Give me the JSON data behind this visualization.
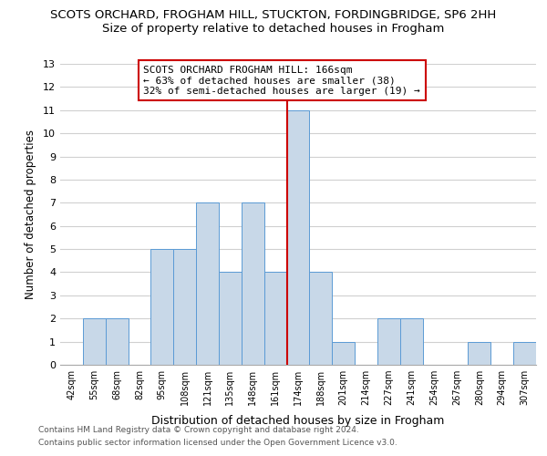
{
  "title": "SCOTS ORCHARD, FROGHAM HILL, STUCKTON, FORDINGBRIDGE, SP6 2HH",
  "subtitle": "Size of property relative to detached houses in Frogham",
  "xlabel": "Distribution of detached houses by size in Frogham",
  "ylabel": "Number of detached properties",
  "bin_labels": [
    "42sqm",
    "55sqm",
    "68sqm",
    "82sqm",
    "95sqm",
    "108sqm",
    "121sqm",
    "135sqm",
    "148sqm",
    "161sqm",
    "174sqm",
    "188sqm",
    "201sqm",
    "214sqm",
    "227sqm",
    "241sqm",
    "254sqm",
    "267sqm",
    "280sqm",
    "294sqm",
    "307sqm"
  ],
  "bar_heights": [
    0,
    2,
    2,
    0,
    5,
    5,
    7,
    4,
    7,
    4,
    11,
    4,
    1,
    0,
    2,
    2,
    0,
    0,
    1,
    0,
    1
  ],
  "bar_color": "#c8d8e8",
  "bar_edge_color": "#5b9bd5",
  "reference_line_x": 10.0,
  "reference_line_color": "#cc0000",
  "annotation_title": "SCOTS ORCHARD FROGHAM HILL: 166sqm",
  "annotation_line1": "← 63% of detached houses are smaller (38)",
  "annotation_line2": "32% of semi-detached houses are larger (19) →",
  "annotation_box_color": "#ffffff",
  "annotation_box_edge": "#cc0000",
  "ylim": [
    0,
    13
  ],
  "yticks": [
    0,
    1,
    2,
    3,
    4,
    5,
    6,
    7,
    8,
    9,
    10,
    11,
    12,
    13
  ],
  "footer1": "Contains HM Land Registry data © Crown copyright and database right 2024.",
  "footer2": "Contains public sector information licensed under the Open Government Licence v3.0.",
  "title_fontsize": 9.5,
  "subtitle_fontsize": 9.5,
  "background_color": "#ffffff",
  "grid_color": "#d0d0d0"
}
